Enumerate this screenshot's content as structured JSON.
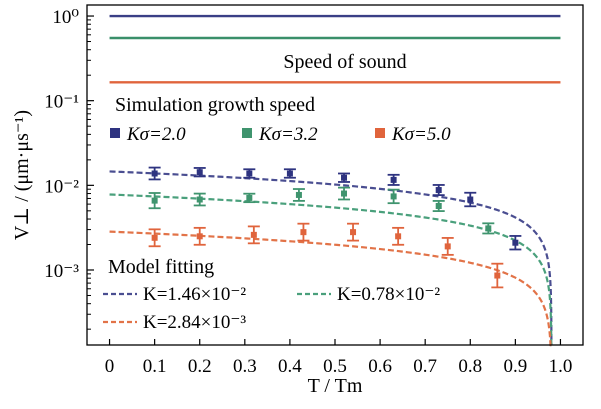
{
  "chart_data": {
    "type": "line",
    "xlabel": "T / Tm",
    "ylabel": "V⊥ / (μm·μs⁻¹)",
    "xlim": [
      -0.05,
      1.05
    ],
    "ylim": [
      0.00013,
      1.35
    ],
    "yscale": "log",
    "x_ticks": [
      "0",
      "0.1",
      "0.2",
      "0.3",
      "0.4",
      "0.5",
      "0.6",
      "0.7",
      "0.8",
      "0.9",
      "1.0"
    ],
    "y_ticks": [
      "10⁰",
      "10⁻¹",
      "10⁻²",
      "10⁻³"
    ],
    "grid": false,
    "annotations": [
      {
        "text": "Speed of sound"
      },
      {
        "text": "Simulation growth speed"
      },
      {
        "text": "Model fitting"
      }
    ],
    "speed_of_sound": [
      {
        "color": "#3a3f86",
        "value": 1.0
      },
      {
        "color": "#3a8f6a",
        "value": 0.55
      },
      {
        "color": "#e0643c",
        "value": 0.165
      }
    ],
    "series": [
      {
        "name": "Kσ=2.0",
        "color": "#2e3380",
        "x": [
          0.1,
          0.2,
          0.31,
          0.4,
          0.52,
          0.63,
          0.73,
          0.8,
          0.9
        ],
        "y": [
          0.0138,
          0.0143,
          0.0138,
          0.0138,
          0.0123,
          0.0116,
          0.0088,
          0.0068,
          0.0021
        ],
        "err": [
          0.07,
          0.05,
          0.05,
          0.05,
          0.05,
          0.06,
          0.06,
          0.08,
          0.08
        ]
      },
      {
        "name": "Kσ=3.2",
        "color": "#3f946e",
        "x": [
          0.1,
          0.2,
          0.31,
          0.42,
          0.52,
          0.63,
          0.73,
          0.84
        ],
        "y": [
          0.0066,
          0.0068,
          0.0071,
          0.0077,
          0.008,
          0.0074,
          0.0057,
          0.0031
        ],
        "err": [
          0.09,
          0.07,
          0.05,
          0.07,
          0.07,
          0.08,
          0.06,
          0.06
        ]
      },
      {
        "name": "Kσ=5.0",
        "color": "#e0643c",
        "x": [
          0.1,
          0.2,
          0.32,
          0.43,
          0.54,
          0.64,
          0.75,
          0.86
        ],
        "y": [
          0.0024,
          0.0025,
          0.0026,
          0.0028,
          0.0028,
          0.0025,
          0.0019,
          0.00086
        ],
        "err": [
          0.1,
          0.1,
          0.1,
          0.1,
          0.1,
          0.1,
          0.1,
          0.14
        ]
      }
    ],
    "fits": [
      {
        "name": "K=1.46×10⁻²",
        "K": 0.0146,
        "color": "#4a4e91"
      },
      {
        "name": "K=0.78×10⁻²",
        "K": 0.0078,
        "color": "#4aa07c"
      },
      {
        "name": "K=2.84×10⁻³",
        "K": 0.00284,
        "color": "#e27348"
      }
    ]
  }
}
